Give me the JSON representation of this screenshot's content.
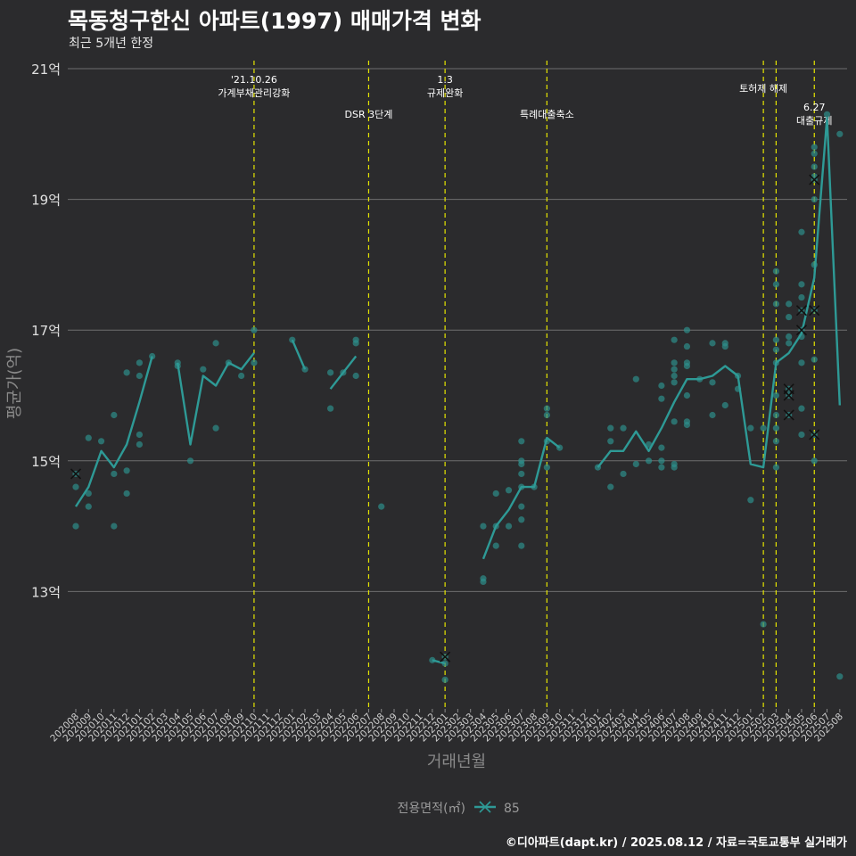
{
  "header": {
    "title": "목동청구한신 아파트(1997) 매매가격 변화",
    "subtitle": "최근 5개년 한정"
  },
  "footer": {
    "caption": "©디아파트(dapt.kr) / 2025.08.12 / 자료=국토교통부 실거래가"
  },
  "colors": {
    "background": "#2b2b2d",
    "grid": "#6e6e6e",
    "series": "#2e9a96",
    "points": "#2e8f8a",
    "event_line": "#e6e600"
  },
  "chart_data": {
    "type": "line",
    "title": "목동청구한신 아파트(1997) 매매가격 변화",
    "subtitle": "최근 5개년 한정",
    "xlabel": "거래년월",
    "ylabel": "평균가(억)",
    "ylim": [
      11.0,
      21.0
    ],
    "yticks": [
      13,
      15,
      17,
      19,
      21
    ],
    "ytick_labels": [
      "13억",
      "15억",
      "17억",
      "19억",
      "21억"
    ],
    "months": [
      "202008",
      "202009",
      "202010",
      "202011",
      "202012",
      "202101",
      "202102",
      "202103",
      "202104",
      "202105",
      "202106",
      "202107",
      "202108",
      "202109",
      "202110",
      "202111",
      "202112",
      "202201",
      "202202",
      "202203",
      "202204",
      "202205",
      "202206",
      "202207",
      "202208",
      "202209",
      "202210",
      "202211",
      "202212",
      "202301",
      "202302",
      "202303",
      "202304",
      "202305",
      "202306",
      "202307",
      "202308",
      "202309",
      "202310",
      "202311",
      "202312",
      "202401",
      "202402",
      "202403",
      "202404",
      "202405",
      "202406",
      "202407",
      "202408",
      "202409",
      "202410",
      "202411",
      "202412",
      "202501",
      "202502",
      "202503",
      "202504",
      "202505",
      "202506",
      "202507",
      "202508"
    ],
    "legend": {
      "title": "전용면적(㎡)",
      "entries": [
        "85"
      ]
    },
    "series": [
      {
        "name": "85",
        "segments": [
          [
            [
              0,
              14.3
            ],
            [
              1,
              14.6
            ],
            [
              2,
              15.15
            ],
            [
              3,
              14.9
            ],
            [
              4,
              15.25
            ],
            [
              5,
              15.9
            ],
            [
              6,
              16.6
            ]
          ],
          [
            [
              8,
              16.5
            ],
            [
              9,
              15.25
            ],
            [
              10,
              16.3
            ],
            [
              11,
              16.15
            ],
            [
              12,
              16.5
            ],
            [
              13,
              16.4
            ],
            [
              14,
              16.65
            ]
          ],
          [
            [
              17,
              16.85
            ],
            [
              18,
              16.4
            ]
          ],
          [
            [
              20,
              16.1
            ],
            [
              21,
              16.35
            ],
            [
              22,
              16.6
            ]
          ],
          [
            [
              28,
              11.95
            ],
            [
              29,
              11.9
            ]
          ],
          [
            [
              32,
              13.5
            ],
            [
              33,
              14.0
            ],
            [
              34,
              14.25
            ],
            [
              35,
              14.6
            ],
            [
              36,
              14.6
            ],
            [
              37,
              15.35
            ],
            [
              38,
              15.2
            ]
          ],
          [
            [
              41,
              14.9
            ],
            [
              42,
              15.15
            ],
            [
              43,
              15.15
            ],
            [
              44,
              15.45
            ],
            [
              45,
              15.15
            ],
            [
              46,
              15.5
            ],
            [
              47,
              15.9
            ],
            [
              48,
              16.25
            ],
            [
              49,
              16.25
            ],
            [
              50,
              16.3
            ],
            [
              51,
              16.45
            ],
            [
              52,
              16.3
            ],
            [
              53,
              14.95
            ],
            [
              54,
              14.9
            ],
            [
              55,
              16.5
            ],
            [
              56,
              16.65
            ],
            [
              57,
              16.95
            ],
            [
              58,
              17.8
            ],
            [
              59,
              20.25
            ],
            [
              60,
              15.85
            ]
          ]
        ]
      }
    ],
    "scatter_points": [
      [
        0,
        14.8
      ],
      [
        0,
        14.6
      ],
      [
        0,
        14.0
      ],
      [
        1,
        15.35
      ],
      [
        1,
        14.5
      ],
      [
        1,
        14.3
      ],
      [
        2,
        15.3
      ],
      [
        3,
        15.7
      ],
      [
        3,
        14.8
      ],
      [
        3,
        14.0
      ],
      [
        4,
        16.35
      ],
      [
        4,
        14.85
      ],
      [
        4,
        14.5
      ],
      [
        5,
        16.5
      ],
      [
        5,
        16.3
      ],
      [
        5,
        15.4
      ],
      [
        5,
        15.25
      ],
      [
        6,
        16.6
      ],
      [
        8,
        16.5
      ],
      [
        8,
        16.45
      ],
      [
        9,
        15.0
      ],
      [
        10,
        16.4
      ],
      [
        11,
        16.8
      ],
      [
        11,
        15.5
      ],
      [
        12,
        16.5
      ],
      [
        13,
        16.3
      ],
      [
        14,
        17.0
      ],
      [
        14,
        16.5
      ],
      [
        17,
        16.85
      ],
      [
        18,
        16.4
      ],
      [
        20,
        16.35
      ],
      [
        20,
        15.8
      ],
      [
        21,
        16.35
      ],
      [
        22,
        16.85
      ],
      [
        22,
        16.8
      ],
      [
        22,
        16.3
      ],
      [
        24,
        14.3
      ],
      [
        28,
        11.95
      ],
      [
        29,
        12.0
      ],
      [
        29,
        11.9
      ],
      [
        29,
        11.65
      ],
      [
        32,
        14.0
      ],
      [
        32,
        13.2
      ],
      [
        32,
        13.15
      ],
      [
        33,
        14.0
      ],
      [
        33,
        14.5
      ],
      [
        33,
        13.7
      ],
      [
        34,
        14.0
      ],
      [
        34,
        14.55
      ],
      [
        35,
        15.3
      ],
      [
        35,
        14.95
      ],
      [
        35,
        14.8
      ],
      [
        35,
        14.3
      ],
      [
        35,
        14.1
      ],
      [
        35,
        13.7
      ],
      [
        35,
        14.6
      ],
      [
        35,
        15.0
      ],
      [
        36,
        14.6
      ],
      [
        37,
        15.8
      ],
      [
        37,
        15.7
      ],
      [
        37,
        15.3
      ],
      [
        37,
        14.9
      ],
      [
        38,
        15.2
      ],
      [
        41,
        14.9
      ],
      [
        42,
        15.5
      ],
      [
        42,
        15.3
      ],
      [
        42,
        14.6
      ],
      [
        43,
        15.5
      ],
      [
        43,
        14.8
      ],
      [
        44,
        16.25
      ],
      [
        44,
        14.95
      ],
      [
        45,
        15.25
      ],
      [
        45,
        15.0
      ],
      [
        46,
        15.95
      ],
      [
        46,
        16.15
      ],
      [
        46,
        15.2
      ],
      [
        46,
        15.0
      ],
      [
        46,
        14.9
      ],
      [
        47,
        16.85
      ],
      [
        47,
        16.5
      ],
      [
        47,
        16.4
      ],
      [
        47,
        16.3
      ],
      [
        47,
        16.2
      ],
      [
        47,
        15.6
      ],
      [
        47,
        14.95
      ],
      [
        47,
        14.9
      ],
      [
        48,
        17.0
      ],
      [
        48,
        16.75
      ],
      [
        48,
        16.5
      ],
      [
        48,
        16.45
      ],
      [
        48,
        16.0
      ],
      [
        48,
        15.6
      ],
      [
        48,
        15.55
      ],
      [
        49,
        16.25
      ],
      [
        50,
        16.8
      ],
      [
        50,
        16.2
      ],
      [
        50,
        15.7
      ],
      [
        51,
        16.8
      ],
      [
        51,
        16.75
      ],
      [
        51,
        15.85
      ],
      [
        52,
        16.1
      ],
      [
        52,
        16.3
      ],
      [
        53,
        15.5
      ],
      [
        53,
        14.4
      ],
      [
        54,
        12.5
      ],
      [
        54,
        15.5
      ],
      [
        55,
        17.9
      ],
      [
        55,
        17.7
      ],
      [
        55,
        17.4
      ],
      [
        55,
        16.85
      ],
      [
        55,
        16.7
      ],
      [
        55,
        16.5
      ],
      [
        55,
        16.0
      ],
      [
        55,
        15.7
      ],
      [
        55,
        15.5
      ],
      [
        55,
        15.3
      ],
      [
        55,
        14.9
      ],
      [
        56,
        17.4
      ],
      [
        56,
        17.2
      ],
      [
        56,
        16.9
      ],
      [
        56,
        16.8
      ],
      [
        56,
        16.1
      ],
      [
        56,
        16.0
      ],
      [
        56,
        15.7
      ],
      [
        57,
        18.5
      ],
      [
        57,
        17.7
      ],
      [
        57,
        17.5
      ],
      [
        57,
        17.3
      ],
      [
        57,
        17.0
      ],
      [
        57,
        16.9
      ],
      [
        57,
        16.5
      ],
      [
        57,
        15.8
      ],
      [
        57,
        15.4
      ],
      [
        58,
        19.8
      ],
      [
        58,
        19.5
      ],
      [
        58,
        19.35
      ],
      [
        58,
        19.3
      ],
      [
        58,
        19.0
      ],
      [
        58,
        18.0
      ],
      [
        58,
        17.3
      ],
      [
        58,
        16.55
      ],
      [
        58,
        15.4
      ],
      [
        58,
        15.0
      ],
      [
        58,
        19.7
      ],
      [
        59,
        20.3
      ],
      [
        60,
        20.0
      ],
      [
        60,
        11.7
      ]
    ],
    "cross_markers": [
      [
        0,
        14.8
      ],
      [
        29,
        12.0
      ],
      [
        56,
        16.1
      ],
      [
        56,
        16.0
      ],
      [
        56,
        15.7
      ],
      [
        57,
        17.3
      ],
      [
        57,
        17.0
      ],
      [
        58,
        19.3
      ],
      [
        58,
        17.3
      ],
      [
        58,
        15.4
      ]
    ],
    "events": [
      {
        "month": "202110",
        "label": "'21.10.26\n가계부채관리강화",
        "level": 0
      },
      {
        "month": "202207",
        "label": "DSR 3단계",
        "level": 1
      },
      {
        "month": "202301",
        "label": "1.3\n규제완화",
        "level": 0
      },
      {
        "month": "202309",
        "label": "특례대출축소",
        "level": 1
      },
      {
        "month": "202502",
        "label": "토허제 해제",
        "level": 0
      },
      {
        "month": "202503",
        "label": "",
        "level": 0
      },
      {
        "month": "202506",
        "label": "6.27\n대출규제",
        "level": 2
      }
    ]
  }
}
